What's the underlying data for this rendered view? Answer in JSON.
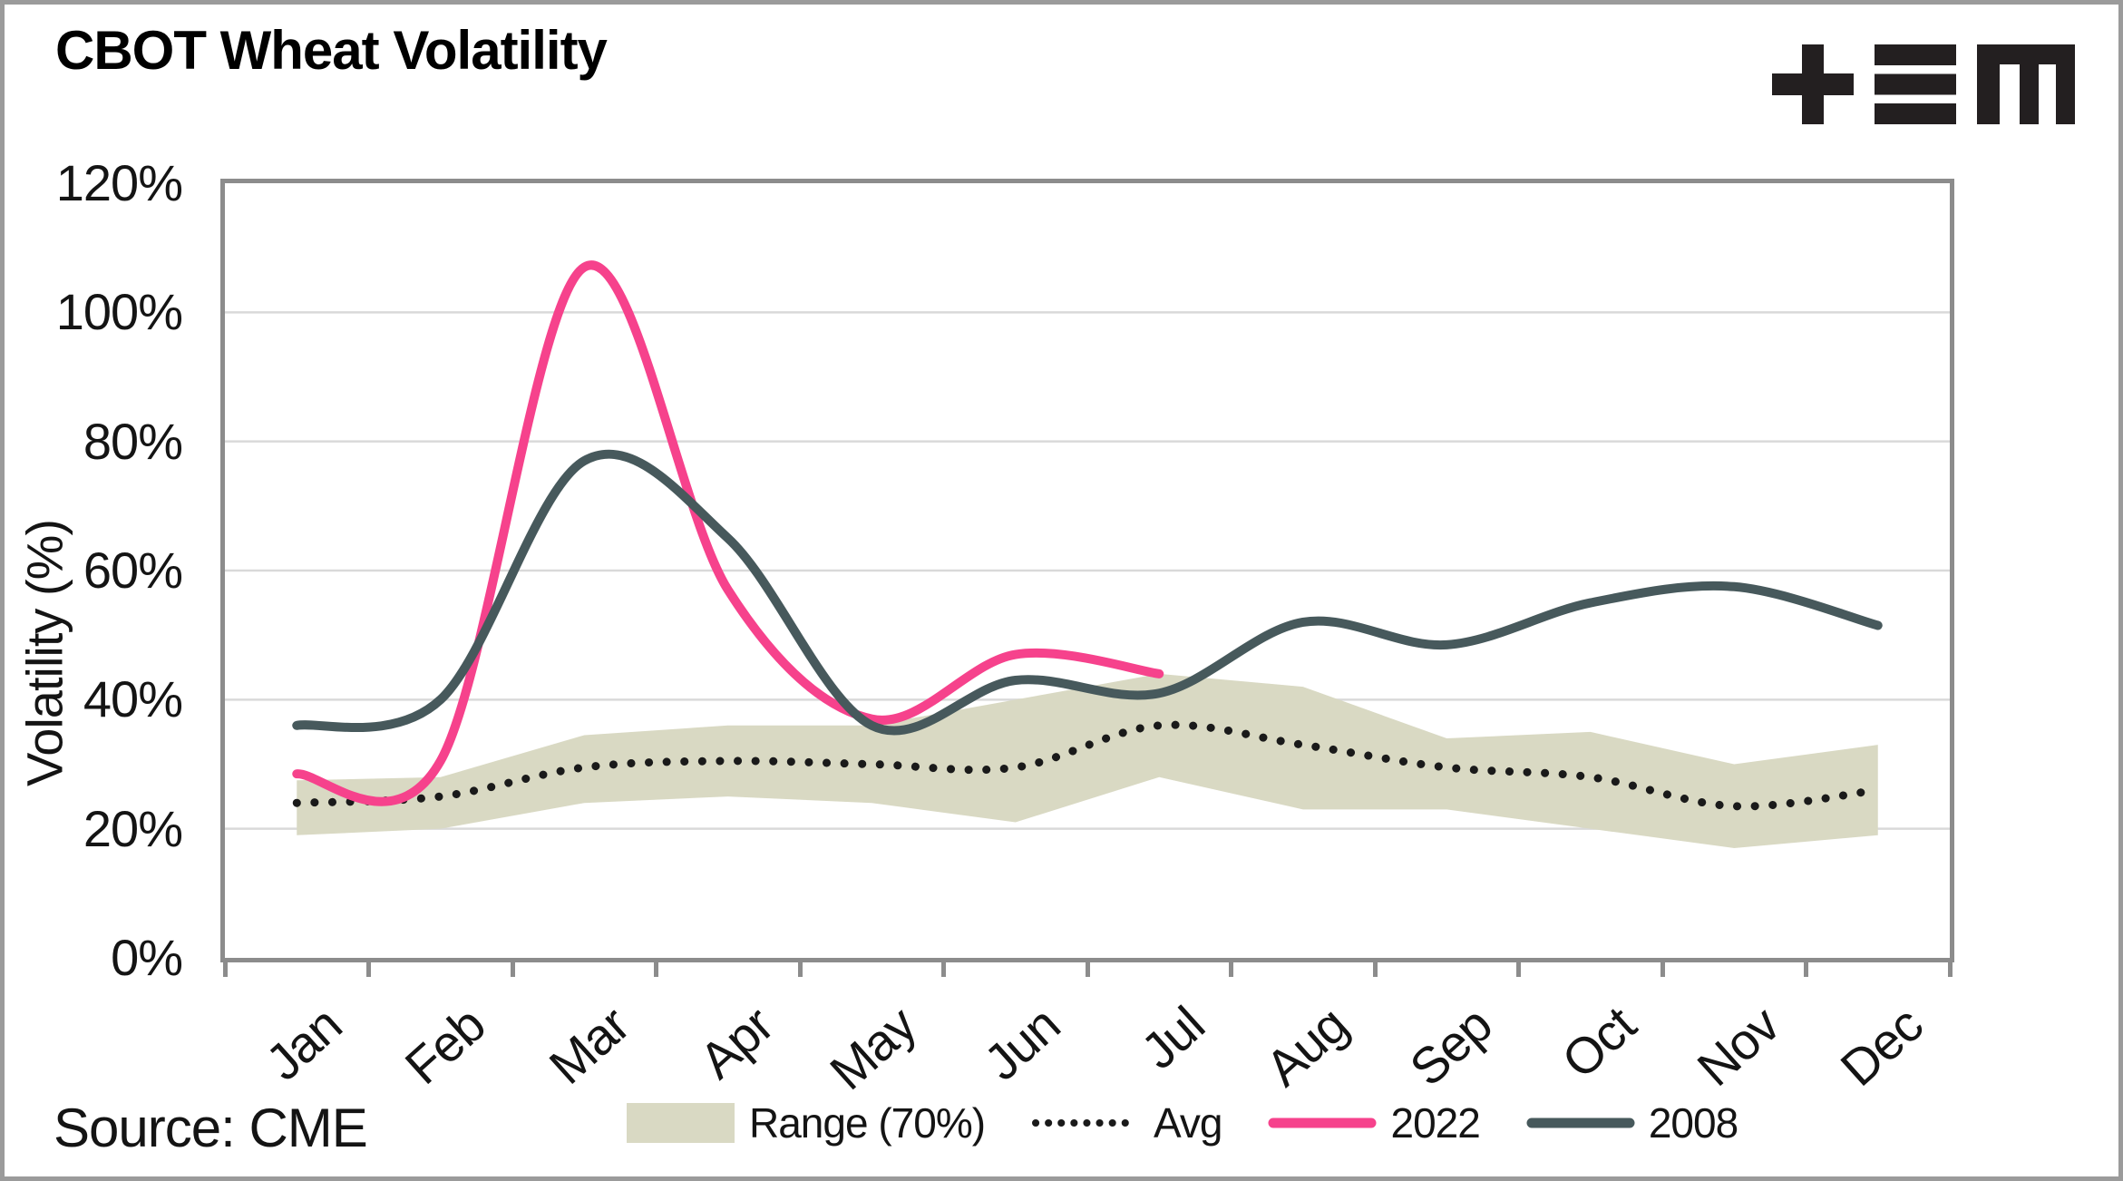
{
  "title": "CBOT Wheat Volatility",
  "source": "Source: CME",
  "logo": {
    "glyphs": [
      "plus",
      "triple-bar",
      "blocky-m"
    ],
    "color": "#231f20"
  },
  "colors": {
    "band": "#d9d9c3",
    "avg_line": "#1a1a1a",
    "line_2022": "#f6428c",
    "line_2008": "#47595c",
    "gridline": "#d9d9d9",
    "plot_border": "#8c8c8c",
    "frame": "#9b9b9b",
    "text": "#141414"
  },
  "chart_data": {
    "type": "line",
    "title": "CBOT Wheat Volatility",
    "xlabel": "",
    "ylabel": "Volatility (%)",
    "categories": [
      "Jan",
      "Feb",
      "Mar",
      "Apr",
      "May",
      "Jun",
      "Jul",
      "Aug",
      "Sep",
      "Oct",
      "Nov",
      "Dec"
    ],
    "ylim": [
      0,
      120
    ],
    "y_ticks": [
      "0%",
      "20%",
      "40%",
      "60%",
      "80%",
      "100%",
      "120%"
    ],
    "grid": "horizontal",
    "grid_step": 20,
    "legend_position": "bottom",
    "x_label_rotation_deg": -42,
    "series": [
      {
        "name": "Range (70%)",
        "type": "band",
        "low": [
          19,
          20,
          24,
          25,
          24,
          21,
          28,
          23,
          23,
          20,
          17,
          19
        ],
        "high": [
          27.5,
          28,
          34.5,
          36,
          36,
          40,
          44,
          42,
          34,
          35,
          30,
          33
        ],
        "color": "#d9d9c3"
      },
      {
        "name": "Avg",
        "type": "dotted-line",
        "values": [
          24,
          25,
          29.5,
          30.5,
          30,
          29.5,
          36,
          33,
          29.5,
          28,
          23.5,
          26
        ],
        "color": "#1a1a1a"
      },
      {
        "name": "2022",
        "type": "line",
        "values": [
          28.5,
          30.5,
          107,
          57,
          37,
          47,
          44
        ],
        "color": "#f6428c"
      },
      {
        "name": "2008",
        "type": "line",
        "values": [
          36,
          40,
          77,
          65,
          36,
          43,
          41,
          52,
          48.5,
          55,
          57.5,
          51.5
        ],
        "color": "#47595c"
      }
    ]
  }
}
